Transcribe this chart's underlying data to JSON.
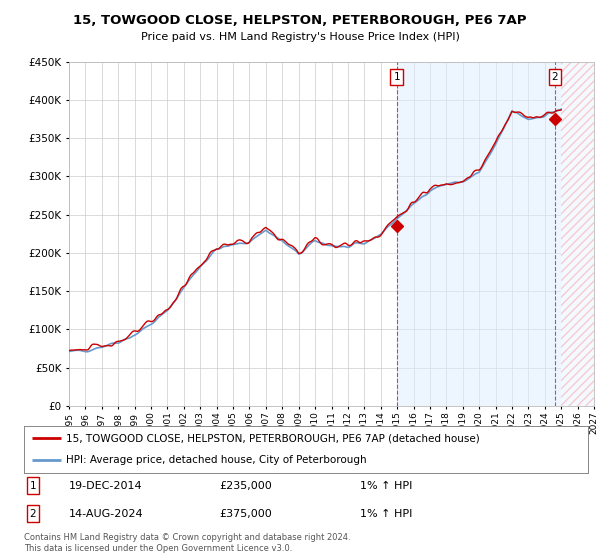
{
  "title": "15, TOWGOOD CLOSE, HELPSTON, PETERBOROUGH, PE6 7AP",
  "subtitle": "Price paid vs. HM Land Registry's House Price Index (HPI)",
  "ylim": [
    0,
    450000
  ],
  "xlim_start": 1995.0,
  "xlim_end": 2027.0,
  "hpi_color": "#6699cc",
  "property_color": "#cc0000",
  "sale1_x": 2014.97,
  "sale1_y": 235000,
  "sale1_date": "19-DEC-2014",
  "sale1_price": "£235,000",
  "sale1_info": "1% ↑ HPI",
  "sale2_x": 2024.62,
  "sale2_y": 375000,
  "sale2_date": "14-AUG-2024",
  "sale2_price": "£375,000",
  "sale2_info": "1% ↑ HPI",
  "legend_property": "15, TOWGOOD CLOSE, HELPSTON, PETERBOROUGH, PE6 7AP (detached house)",
  "legend_hpi": "HPI: Average price, detached house, City of Peterborough",
  "footnote": "Contains HM Land Registry data © Crown copyright and database right 2024.\nThis data is licensed under the Open Government Licence v3.0.",
  "bg_color": "#ffffff",
  "shade_color": "#ddeeff",
  "grid_color": "#cccccc",
  "hatch_color": "#ddaaaa"
}
